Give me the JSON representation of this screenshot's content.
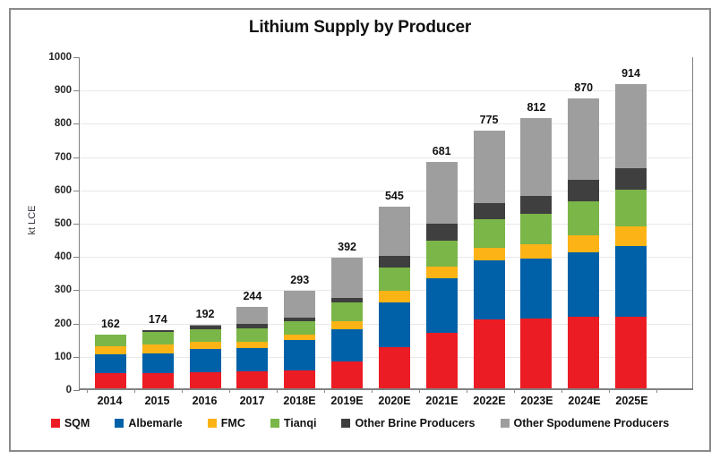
{
  "window": {
    "background_color": "#ffffff",
    "border_color": "#8a8a8a"
  },
  "chart_data": {
    "type": "bar",
    "stacked": true,
    "title": "Lithium Supply by Producer",
    "xlabel": "",
    "ylabel": "kt LCE",
    "ylim": [
      0,
      1000
    ],
    "yticks": [
      0,
      100,
      200,
      300,
      400,
      500,
      600,
      700,
      800,
      900,
      1000
    ],
    "grid": true,
    "legend_position": "bottom",
    "categories": [
      "2014",
      "2015",
      "2016",
      "2017",
      "2018E",
      "2019E",
      "2020E",
      "2021E",
      "2022E",
      "2023E",
      "2024E",
      "2025E"
    ],
    "totals": [
      162,
      174,
      192,
      244,
      293,
      392,
      545,
      681,
      775,
      812,
      870,
      914
    ],
    "series": [
      {
        "name": "SQM",
        "color": "#ec1c24",
        "values": [
          46,
          47,
          48,
          52,
          53,
          81,
          124,
          167,
          208,
          210,
          216,
          216
        ]
      },
      {
        "name": "Albemarle",
        "color": "#0061a8",
        "values": [
          56,
          59,
          70,
          68,
          91,
          97,
          133,
          163,
          176,
          179,
          194,
          211
        ]
      },
      {
        "name": "FMC",
        "color": "#fbb316",
        "values": [
          24,
          26,
          22,
          20,
          17,
          23,
          36,
          35,
          37,
          45,
          51,
          59
        ]
      },
      {
        "name": "Tianqi",
        "color": "#7ab648",
        "values": [
          36,
          37,
          38,
          40,
          40,
          57,
          71,
          80,
          86,
          91,
          100,
          112
        ]
      },
      {
        "name": "Other Brine Producers",
        "color": "#3f3f3f",
        "values": [
          0,
          5,
          9,
          13,
          11,
          14,
          34,
          50,
          49,
          53,
          65,
          63
        ]
      },
      {
        "name": "Other Spodumene Producers",
        "color": "#9e9e9e",
        "values": [
          0,
          0,
          5,
          51,
          81,
          120,
          147,
          186,
          219,
          234,
          244,
          253
        ]
      }
    ]
  }
}
